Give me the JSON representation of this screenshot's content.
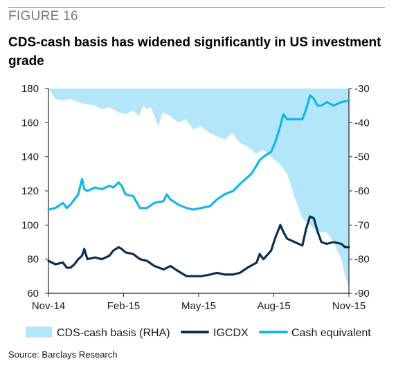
{
  "figure_label": "FIGURE 16",
  "title": "CDS-cash basis has widened significantly in US investment grade",
  "source": "Source: Barclays Research",
  "colors": {
    "area": "#b3e6f8",
    "igcdx": "#0b2f4d",
    "cash": "#14b5e8",
    "axis": "#222222"
  },
  "chart_data": {
    "type": "line",
    "x_tick_labels": [
      "Nov-14",
      "Feb-15",
      "May-15",
      "Aug-15",
      "Nov-15"
    ],
    "x_range": [
      "2014-11-01",
      "2015-11-30"
    ],
    "left_axis": {
      "ticks": [
        60,
        80,
        100,
        120,
        140,
        160,
        180
      ],
      "ylim": [
        60,
        180
      ]
    },
    "right_axis": {
      "ticks": [
        -30,
        -40,
        -50,
        -60,
        -70,
        -80,
        -90
      ],
      "ylim": [
        -90,
        -30
      ]
    },
    "legend_position": "bottom",
    "series": [
      {
        "name": "CDS-cash basis (RHA)",
        "type": "area",
        "axis": "right",
        "points": [
          [
            "2014-11-01",
            -30
          ],
          [
            "2014-11-10",
            -33
          ],
          [
            "2014-11-20",
            -33.5
          ],
          [
            "2014-11-30",
            -33
          ],
          [
            "2014-12-10",
            -34
          ],
          [
            "2014-12-20",
            -34.5
          ],
          [
            "2015-01-01",
            -35
          ],
          [
            "2015-01-10",
            -36
          ],
          [
            "2015-01-20",
            -35.5
          ],
          [
            "2015-02-01",
            -37
          ],
          [
            "2015-02-10",
            -37.5
          ],
          [
            "2015-02-20",
            -36.5
          ],
          [
            "2015-02-28",
            -38
          ],
          [
            "2015-03-05",
            -35
          ],
          [
            "2015-03-10",
            -36
          ],
          [
            "2015-03-15",
            -35.5
          ],
          [
            "2015-03-20",
            -38
          ],
          [
            "2015-03-25",
            -41
          ],
          [
            "2015-03-31",
            -37
          ],
          [
            "2015-04-10",
            -38
          ],
          [
            "2015-04-20",
            -40
          ],
          [
            "2015-04-30",
            -39
          ],
          [
            "2015-05-10",
            -42
          ],
          [
            "2015-05-20",
            -41
          ],
          [
            "2015-05-31",
            -43
          ],
          [
            "2015-06-10",
            -44
          ],
          [
            "2015-06-20",
            -45
          ],
          [
            "2015-06-30",
            -43
          ],
          [
            "2015-07-10",
            -46
          ],
          [
            "2015-07-20",
            -47
          ],
          [
            "2015-07-31",
            -49
          ],
          [
            "2015-08-10",
            -48
          ],
          [
            "2015-08-20",
            -50
          ],
          [
            "2015-08-31",
            -52
          ],
          [
            "2015-09-10",
            -55
          ],
          [
            "2015-09-20",
            -62
          ],
          [
            "2015-09-30",
            -68
          ],
          [
            "2015-10-10",
            -70
          ],
          [
            "2015-10-20",
            -72
          ],
          [
            "2015-10-31",
            -72
          ],
          [
            "2015-11-10",
            -75
          ],
          [
            "2015-11-20",
            -80
          ],
          [
            "2015-11-25",
            -85
          ],
          [
            "2015-11-30",
            -88
          ]
        ]
      },
      {
        "name": "IGCDX",
        "type": "line",
        "axis": "left",
        "points": [
          [
            "2014-11-01",
            79
          ],
          [
            "2014-11-10",
            77
          ],
          [
            "2014-11-20",
            78
          ],
          [
            "2014-11-25",
            75
          ],
          [
            "2014-11-30",
            75
          ],
          [
            "2014-12-05",
            77
          ],
          [
            "2014-12-10",
            80
          ],
          [
            "2014-12-15",
            82
          ],
          [
            "2014-12-18",
            86
          ],
          [
            "2014-12-22",
            80
          ],
          [
            "2015-01-01",
            81
          ],
          [
            "2015-01-10",
            80
          ],
          [
            "2015-01-20",
            82
          ],
          [
            "2015-01-25",
            85
          ],
          [
            "2015-02-01",
            87
          ],
          [
            "2015-02-05",
            86
          ],
          [
            "2015-02-10",
            84
          ],
          [
            "2015-02-20",
            83
          ],
          [
            "2015-03-01",
            80
          ],
          [
            "2015-03-10",
            79
          ],
          [
            "2015-03-20",
            76
          ],
          [
            "2015-04-01",
            74
          ],
          [
            "2015-04-10",
            76
          ],
          [
            "2015-04-20",
            73
          ],
          [
            "2015-05-01",
            70
          ],
          [
            "2015-05-10",
            70
          ],
          [
            "2015-05-20",
            70
          ],
          [
            "2015-06-01",
            71
          ],
          [
            "2015-06-10",
            72
          ],
          [
            "2015-06-20",
            71
          ],
          [
            "2015-07-01",
            71
          ],
          [
            "2015-07-10",
            72
          ],
          [
            "2015-07-20",
            75
          ],
          [
            "2015-08-01",
            78
          ],
          [
            "2015-08-05",
            83
          ],
          [
            "2015-08-10",
            80
          ],
          [
            "2015-08-20",
            85
          ],
          [
            "2015-08-25",
            92
          ],
          [
            "2015-09-01",
            100
          ],
          [
            "2015-09-05",
            96
          ],
          [
            "2015-09-10",
            92
          ],
          [
            "2015-09-20",
            90
          ],
          [
            "2015-09-30",
            88
          ],
          [
            "2015-10-05",
            98
          ],
          [
            "2015-10-10",
            105
          ],
          [
            "2015-10-15",
            104
          ],
          [
            "2015-10-20",
            96
          ],
          [
            "2015-10-25",
            90
          ],
          [
            "2015-11-01",
            89
          ],
          [
            "2015-11-10",
            90
          ],
          [
            "2015-11-20",
            89
          ],
          [
            "2015-11-25",
            87
          ],
          [
            "2015-11-30",
            87
          ]
        ]
      },
      {
        "name": "Cash equivalent",
        "type": "line",
        "axis": "left",
        "points": [
          [
            "2014-11-01",
            109
          ],
          [
            "2014-11-10",
            110
          ],
          [
            "2014-11-20",
            113
          ],
          [
            "2014-11-25",
            110
          ],
          [
            "2014-11-30",
            112
          ],
          [
            "2014-12-05",
            115
          ],
          [
            "2014-12-10",
            118
          ],
          [
            "2014-12-15",
            127
          ],
          [
            "2014-12-18",
            121
          ],
          [
            "2014-12-22",
            120
          ],
          [
            "2015-01-01",
            122
          ],
          [
            "2015-01-10",
            121
          ],
          [
            "2015-01-20",
            123
          ],
          [
            "2015-01-25",
            122
          ],
          [
            "2015-02-01",
            125
          ],
          [
            "2015-02-05",
            123
          ],
          [
            "2015-02-10",
            118
          ],
          [
            "2015-02-20",
            117
          ],
          [
            "2015-03-01",
            110
          ],
          [
            "2015-03-10",
            110
          ],
          [
            "2015-03-20",
            113
          ],
          [
            "2015-04-01",
            114
          ],
          [
            "2015-04-05",
            118
          ],
          [
            "2015-04-10",
            115
          ],
          [
            "2015-04-20",
            112
          ],
          [
            "2015-05-01",
            110
          ],
          [
            "2015-05-10",
            109
          ],
          [
            "2015-05-20",
            110
          ],
          [
            "2015-06-01",
            111
          ],
          [
            "2015-06-10",
            115
          ],
          [
            "2015-06-20",
            118
          ],
          [
            "2015-07-01",
            120
          ],
          [
            "2015-07-10",
            124
          ],
          [
            "2015-07-20",
            128
          ],
          [
            "2015-07-25",
            130
          ],
          [
            "2015-08-01",
            135
          ],
          [
            "2015-08-05",
            138
          ],
          [
            "2015-08-10",
            140
          ],
          [
            "2015-08-20",
            143
          ],
          [
            "2015-08-25",
            148
          ],
          [
            "2015-09-01",
            158
          ],
          [
            "2015-09-05",
            165
          ],
          [
            "2015-09-10",
            162
          ],
          [
            "2015-09-20",
            162
          ],
          [
            "2015-09-30",
            162
          ],
          [
            "2015-10-05",
            168
          ],
          [
            "2015-10-10",
            176
          ],
          [
            "2015-10-15",
            174
          ],
          [
            "2015-10-20",
            170
          ],
          [
            "2015-10-25",
            170
          ],
          [
            "2015-11-01",
            172
          ],
          [
            "2015-11-10",
            170
          ],
          [
            "2015-11-20",
            172
          ],
          [
            "2015-11-30",
            173
          ]
        ]
      }
    ]
  }
}
